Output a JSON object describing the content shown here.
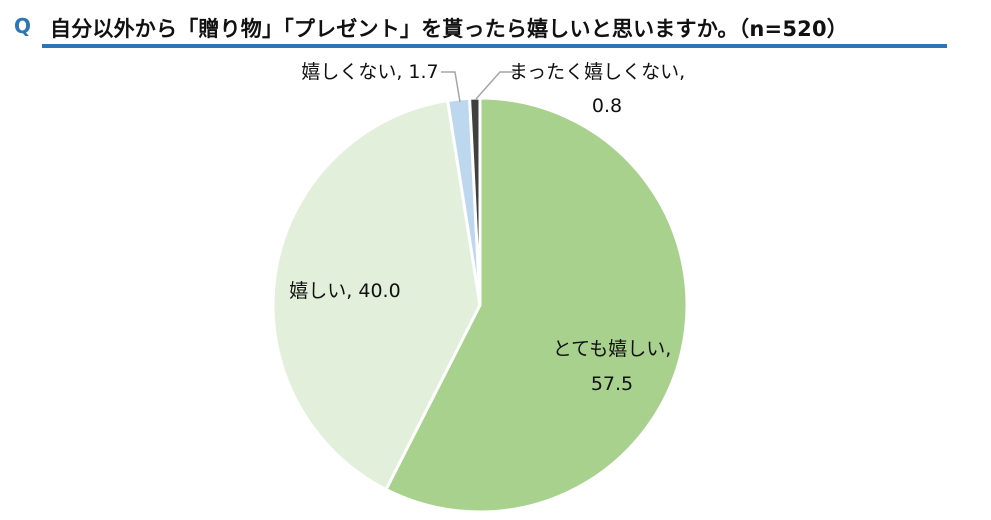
{
  "header": {
    "q_mark": "Q",
    "title": "自分以外から「贈り物」「プレゼント」を貰ったら嬉しいと思いますか。（n=520）"
  },
  "chart_data": {
    "type": "pie",
    "title": "自分以外から「贈り物」「プレゼント」を貰ったら嬉しいと思いますか。（n=520）",
    "n": 520,
    "start_angle_deg": 0,
    "direction": "clockwise",
    "slices": [
      {
        "label": "とても嬉しい",
        "value": 57.5,
        "color": "#A9D18E",
        "label_text": "とても嬉しい,",
        "value_text": "57.5"
      },
      {
        "label": "嬉しい",
        "value": 40.0,
        "color": "#E2EFDA",
        "label_text": "嬉しい, 40.0",
        "value_text": ""
      },
      {
        "label": "嬉しくない",
        "value": 1.7,
        "color": "#BDD7EE",
        "label_text": "嬉しくない, 1.7",
        "value_text": ""
      },
      {
        "label": "まったく嬉しくない",
        "value": 0.8,
        "color": "#404040",
        "label_text": "まったく嬉しくない,",
        "value_text": "0.8"
      }
    ],
    "slice_border_color": "#ffffff",
    "leader_line_color": "#A6A6A6"
  }
}
